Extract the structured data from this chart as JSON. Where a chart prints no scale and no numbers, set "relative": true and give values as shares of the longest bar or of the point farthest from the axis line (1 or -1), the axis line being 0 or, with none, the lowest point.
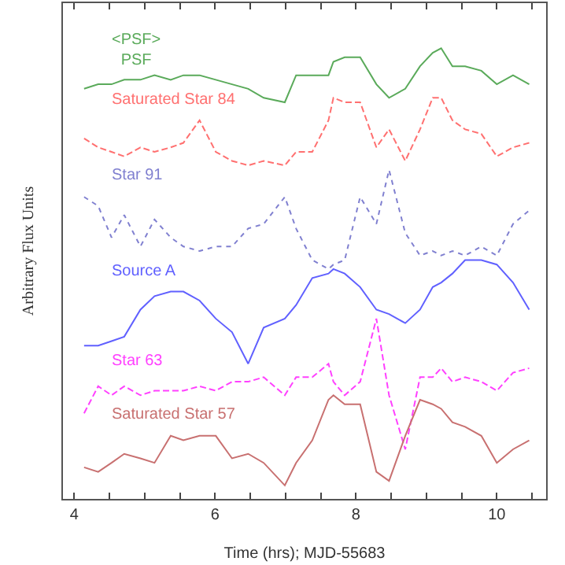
{
  "chart_data": {
    "type": "line",
    "relative": true,
    "xlabel": "Time (hrs); MJD-55683",
    "ylabel": "Arbitrary Flux Units",
    "xlim": [
      3.84,
      10.7
    ],
    "xticks": [
      4,
      {
        "value": 4.5,
        "label": null
      },
      {
        "value": 5,
        "label": null
      },
      {
        "value": 5.5,
        "label": null
      },
      6,
      {
        "value": 6.5,
        "label": null
      },
      {
        "value": 7,
        "label": null
      },
      {
        "value": 7.5,
        "label": null
      },
      8,
      {
        "value": 8.5,
        "label": null
      },
      {
        "value": 9,
        "label": null
      },
      {
        "value": 9.5,
        "label": null
      },
      10,
      {
        "value": 10.5,
        "label": null
      }
    ],
    "x": [
      4.14,
      4.34,
      4.53,
      4.71,
      4.94,
      5.14,
      5.37,
      5.55,
      5.78,
      6.01,
      6.24,
      6.47,
      6.69,
      6.99,
      7.15,
      7.38,
      7.61,
      7.68,
      7.84,
      8.06,
      8.29,
      8.47,
      8.7,
      8.91,
      9.09,
      9.21,
      9.37,
      9.55,
      9.78,
      10.0,
      10.23,
      10.46
    ],
    "legend": false,
    "marker": "none",
    "series": [
      {
        "name": "<PSF>\nPSF",
        "color": "#5aaa5a",
        "line_style": "solid",
        "values": [
          0.91,
          0.92,
          0.92,
          0.93,
          0.93,
          0.94,
          0.93,
          0.94,
          0.94,
          0.93,
          0.92,
          0.91,
          0.89,
          0.88,
          0.94,
          0.94,
          0.94,
          0.97,
          0.98,
          0.98,
          0.92,
          0.89,
          0.91,
          0.96,
          0.99,
          1.0,
          0.96,
          0.96,
          0.95,
          0.92,
          0.94,
          0.92
        ]
      },
      {
        "name": "Saturated Star 84",
        "color": "#ff7070",
        "line_style": "dashed",
        "values": [
          0.8,
          0.78,
          0.77,
          0.76,
          0.78,
          0.77,
          0.78,
          0.79,
          0.84,
          0.77,
          0.75,
          0.74,
          0.75,
          0.74,
          0.77,
          0.77,
          0.84,
          0.89,
          0.88,
          0.88,
          0.78,
          0.82,
          0.75,
          0.82,
          0.89,
          0.89,
          0.84,
          0.82,
          0.81,
          0.76,
          0.78,
          0.79
        ]
      },
      {
        "name": "Star 91",
        "color": "#8080d0",
        "line_style": "dotted",
        "values": [
          0.67,
          0.65,
          0.58,
          0.63,
          0.56,
          0.62,
          0.58,
          0.56,
          0.55,
          0.56,
          0.56,
          0.6,
          0.61,
          0.67,
          0.6,
          0.53,
          0.51,
          0.52,
          0.53,
          0.67,
          0.61,
          0.73,
          0.59,
          0.54,
          0.55,
          0.54,
          0.55,
          0.54,
          0.56,
          0.54,
          0.61,
          0.64
        ]
      },
      {
        "name": "Source A",
        "color": "#6060ff",
        "line_style": "solid",
        "values": [
          0.34,
          0.34,
          0.35,
          0.36,
          0.42,
          0.45,
          0.46,
          0.46,
          0.44,
          0.4,
          0.37,
          0.3,
          0.38,
          0.4,
          0.43,
          0.49,
          0.5,
          0.51,
          0.5,
          0.47,
          0.42,
          0.41,
          0.39,
          0.42,
          0.47,
          0.48,
          0.5,
          0.53,
          0.53,
          0.52,
          0.48,
          0.42
        ]
      },
      {
        "name": "Star 63",
        "color": "#ff40ff",
        "line_style": "dashed",
        "values": [
          0.19,
          0.25,
          0.23,
          0.25,
          0.23,
          0.24,
          0.24,
          0.24,
          0.25,
          0.24,
          0.26,
          0.26,
          0.27,
          0.23,
          0.27,
          0.27,
          0.3,
          0.26,
          0.23,
          0.26,
          0.4,
          0.23,
          0.11,
          0.27,
          0.27,
          0.29,
          0.26,
          0.27,
          0.26,
          0.24,
          0.28,
          0.29
        ]
      },
      {
        "name": "Saturated Star 57",
        "color": "#c87070",
        "line_style": "solid",
        "values": [
          0.07,
          0.06,
          0.08,
          0.1,
          0.09,
          0.08,
          0.14,
          0.13,
          0.14,
          0.14,
          0.09,
          0.1,
          0.08,
          0.03,
          0.08,
          0.13,
          0.22,
          0.23,
          0.21,
          0.21,
          0.06,
          0.04,
          0.14,
          0.22,
          0.21,
          0.2,
          0.17,
          0.16,
          0.14,
          0.08,
          0.11,
          0.13
        ]
      }
    ]
  }
}
